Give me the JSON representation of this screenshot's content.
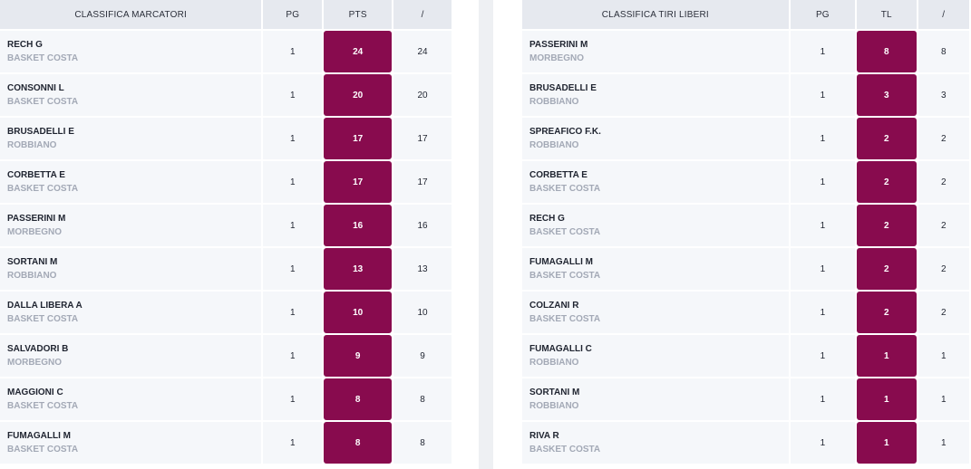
{
  "scorers": {
    "headers": [
      "CLASSIFICA MARCATORI",
      "PG",
      "PTS",
      "/"
    ],
    "rows": [
      {
        "name": "RECH G",
        "team": "BASKET COSTA",
        "pg": "1",
        "pts": "24",
        "avg": "24"
      },
      {
        "name": "CONSONNI L",
        "team": "BASKET COSTA",
        "pg": "1",
        "pts": "20",
        "avg": "20"
      },
      {
        "name": "BRUSADELLI E",
        "team": "ROBBIANO",
        "pg": "1",
        "pts": "17",
        "avg": "17"
      },
      {
        "name": "CORBETTA E",
        "team": "BASKET COSTA",
        "pg": "1",
        "pts": "17",
        "avg": "17"
      },
      {
        "name": "PASSERINI M",
        "team": "MORBEGNO",
        "pg": "1",
        "pts": "16",
        "avg": "16"
      },
      {
        "name": "SORTANI M",
        "team": "ROBBIANO",
        "pg": "1",
        "pts": "13",
        "avg": "13"
      },
      {
        "name": "DALLA LIBERA A",
        "team": "BASKET COSTA",
        "pg": "1",
        "pts": "10",
        "avg": "10"
      },
      {
        "name": "SALVADORI B",
        "team": "MORBEGNO",
        "pg": "1",
        "pts": "9",
        "avg": "9"
      },
      {
        "name": "MAGGIONI C",
        "team": "BASKET COSTA",
        "pg": "1",
        "pts": "8",
        "avg": "8"
      },
      {
        "name": "FUMAGALLI M",
        "team": "BASKET COSTA",
        "pg": "1",
        "pts": "8",
        "avg": "8"
      }
    ]
  },
  "free_throws": {
    "headers": [
      "CLASSIFICA TIRI LIBERI",
      "PG",
      "TL",
      "/"
    ],
    "rows": [
      {
        "name": "PASSERINI M",
        "team": "MORBEGNO",
        "pg": "1",
        "tl": "8",
        "avg": "8"
      },
      {
        "name": "BRUSADELLI E",
        "team": "ROBBIANO",
        "pg": "1",
        "tl": "3",
        "avg": "3"
      },
      {
        "name": "SPREAFICO F.K.",
        "team": "ROBBIANO",
        "pg": "1",
        "tl": "2",
        "avg": "2"
      },
      {
        "name": "CORBETTA E",
        "team": "BASKET COSTA",
        "pg": "1",
        "tl": "2",
        "avg": "2"
      },
      {
        "name": "RECH G",
        "team": "BASKET COSTA",
        "pg": "1",
        "tl": "2",
        "avg": "2"
      },
      {
        "name": "FUMAGALLI M",
        "team": "BASKET COSTA",
        "pg": "1",
        "tl": "2",
        "avg": "2"
      },
      {
        "name": "COLZANI R",
        "team": "BASKET COSTA",
        "pg": "1",
        "tl": "2",
        "avg": "2"
      },
      {
        "name": "FUMAGALLI C",
        "team": "ROBBIANO",
        "pg": "1",
        "tl": "1",
        "avg": "1"
      },
      {
        "name": "SORTANI M",
        "team": "ROBBIANO",
        "pg": "1",
        "tl": "1",
        "avg": "1"
      },
      {
        "name": "RIVA R",
        "team": "BASKET COSTA",
        "pg": "1",
        "tl": "1",
        "avg": "1"
      }
    ]
  },
  "colors": {
    "highlight": "#880b4e",
    "header_bg": "#e6e9ef",
    "cell_bg": "#f5f7fa",
    "team_text": "#a3a9b6"
  }
}
